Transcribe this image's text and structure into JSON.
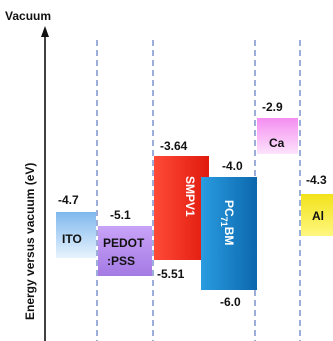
{
  "axis": {
    "top_label": "Vacuum",
    "y_title": "Energy versus vacuum (eV)"
  },
  "materials": [
    {
      "id": "ito",
      "name": "ITO",
      "level": "-4.7",
      "colors": [
        "#7fb8ee",
        "#e3f0fc"
      ]
    },
    {
      "id": "pedot",
      "name_line1": "PEDOT",
      "name_line2": ":PSS",
      "level": "-5.1",
      "colors": [
        "#c79ef7",
        "#a57be6"
      ]
    },
    {
      "id": "smpv1",
      "name": "SMPV1",
      "homo": "-5.51",
      "lumo": "-3.64",
      "colors": [
        "#ff3a2a",
        "#e51e10"
      ]
    },
    {
      "id": "pc71bm",
      "name_base": "PC",
      "name_sub": "71",
      "name_tail": "BM",
      "homo": "-6.0",
      "lumo": "-4.0",
      "colors": [
        "#1f8fd6",
        "#0e6fb6"
      ]
    },
    {
      "id": "ca",
      "name": "Ca",
      "level": "-2.9",
      "colors": [
        "#f59cf2",
        "#fbd6f9"
      ]
    },
    {
      "id": "al",
      "name": "Al",
      "level": "-4.3",
      "colors": [
        "#f5e61e",
        "#fff46a"
      ]
    }
  ]
}
